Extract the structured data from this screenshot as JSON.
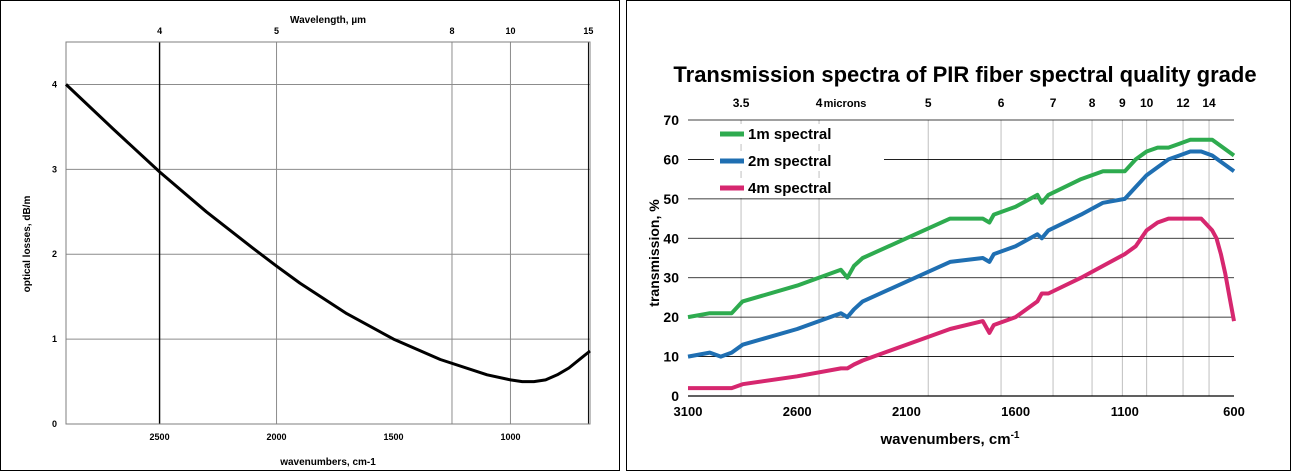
{
  "chart_data": [
    {
      "type": "line",
      "title": "",
      "xlabel": "wavenumbers, cm-1",
      "ylabel": "optical losses, dB/m",
      "top_axis_label": "Wavelength,  µm",
      "xlim": [
        2900,
        660
      ],
      "ylim": [
        0,
        4.5
      ],
      "x_ticks": [
        "2500",
        "2000",
        "1500",
        "1000"
      ],
      "x_tick_values": [
        2500,
        2000,
        1500,
        1000
      ],
      "y_ticks": [
        "0",
        "1",
        "2",
        "3",
        "4"
      ],
      "y_tick_values": [
        0,
        1,
        2,
        3,
        4
      ],
      "top_ticks": [
        "4",
        "5",
        "8",
        "10",
        "15"
      ],
      "top_tick_values": [
        4,
        5,
        8,
        10,
        15
      ],
      "grid": true,
      "line_color": "#000000",
      "series": [
        {
          "x": [
            2900,
            2700,
            2500,
            2300,
            2100,
            2000,
            1900,
            1700,
            1500,
            1300,
            1100,
            1000,
            950,
            900,
            850,
            800,
            750,
            700,
            660
          ],
          "y": [
            4.0,
            3.48,
            2.97,
            2.5,
            2.07,
            1.86,
            1.66,
            1.3,
            1.0,
            0.76,
            0.58,
            0.52,
            0.5,
            0.5,
            0.52,
            0.58,
            0.66,
            0.77,
            0.86
          ]
        }
      ]
    },
    {
      "type": "line",
      "title": "Transmission spectra of PIR fiber spectral quality grade",
      "xlabel": "wavenumbers, cm",
      "xlabel_superscript": "-1",
      "ylabel": "transmission, %",
      "top_axis_label": "microns",
      "xlim": [
        3100,
        600
      ],
      "ylim": [
        0,
        70
      ],
      "x_ticks": [
        "3100",
        "2600",
        "2100",
        "1600",
        "1100",
        "600"
      ],
      "x_tick_values": [
        3100,
        2600,
        2100,
        1600,
        1100,
        600
      ],
      "y_ticks": [
        "0",
        "10",
        "20",
        "30",
        "40",
        "50",
        "60",
        "70"
      ],
      "y_tick_values": [
        0,
        10,
        20,
        30,
        40,
        50,
        60,
        70
      ],
      "top_ticks": [
        "3.5",
        "4",
        "5",
        "6",
        "7",
        "8",
        "9",
        "10",
        "12",
        "14"
      ],
      "top_tick_values": [
        3.5,
        4,
        5,
        6,
        7,
        8,
        9,
        10,
        12,
        14
      ],
      "grid": true,
      "legend_position": "top-left",
      "series": [
        {
          "name": "1m spectral",
          "color": "#2eab4f",
          "x": [
            3100,
            3000,
            2950,
            2900,
            2850,
            2600,
            2400,
            2370,
            2340,
            2300,
            2100,
            1900,
            1750,
            1720,
            1700,
            1600,
            1500,
            1480,
            1450,
            1300,
            1200,
            1100,
            1050,
            1000,
            950,
            900,
            850,
            800,
            750,
            700,
            650,
            600
          ],
          "y": [
            20,
            21,
            21,
            21,
            24,
            28,
            32,
            30,
            33,
            35,
            40,
            45,
            45,
            44,
            46,
            48,
            51,
            49,
            51,
            55,
            57,
            57,
            60,
            62,
            63,
            63,
            64,
            65,
            65,
            65,
            63,
            61
          ]
        },
        {
          "name": "2m spectral",
          "color": "#1f6fb2",
          "x": [
            3100,
            3000,
            2950,
            2900,
            2850,
            2600,
            2400,
            2370,
            2340,
            2300,
            2100,
            1900,
            1750,
            1720,
            1700,
            1600,
            1500,
            1480,
            1450,
            1300,
            1200,
            1100,
            1050,
            1000,
            950,
            900,
            850,
            800,
            750,
            700,
            650,
            600
          ],
          "y": [
            10,
            11,
            10,
            11,
            13,
            17,
            21,
            20,
            22,
            24,
            29,
            34,
            35,
            34,
            36,
            38,
            41,
            40,
            42,
            46,
            49,
            50,
            53,
            56,
            58,
            60,
            61,
            62,
            62,
            61,
            59,
            57
          ]
        },
        {
          "name": "4m spectral",
          "color": "#d6276f",
          "x": [
            3100,
            3000,
            2950,
            2900,
            2850,
            2600,
            2400,
            2370,
            2340,
            2300,
            2100,
            1900,
            1750,
            1720,
            1700,
            1600,
            1500,
            1480,
            1450,
            1300,
            1200,
            1100,
            1050,
            1000,
            950,
            900,
            850,
            800,
            750,
            700,
            680,
            660,
            640,
            620,
            600
          ],
          "y": [
            2,
            2,
            2,
            2,
            3,
            5,
            7,
            7,
            8,
            9,
            13,
            17,
            19,
            16,
            18,
            20,
            24,
            26,
            26,
            30,
            33,
            36,
            38,
            42,
            44,
            45,
            45,
            45,
            45,
            42,
            40,
            36,
            31,
            25,
            19
          ]
        }
      ]
    }
  ]
}
